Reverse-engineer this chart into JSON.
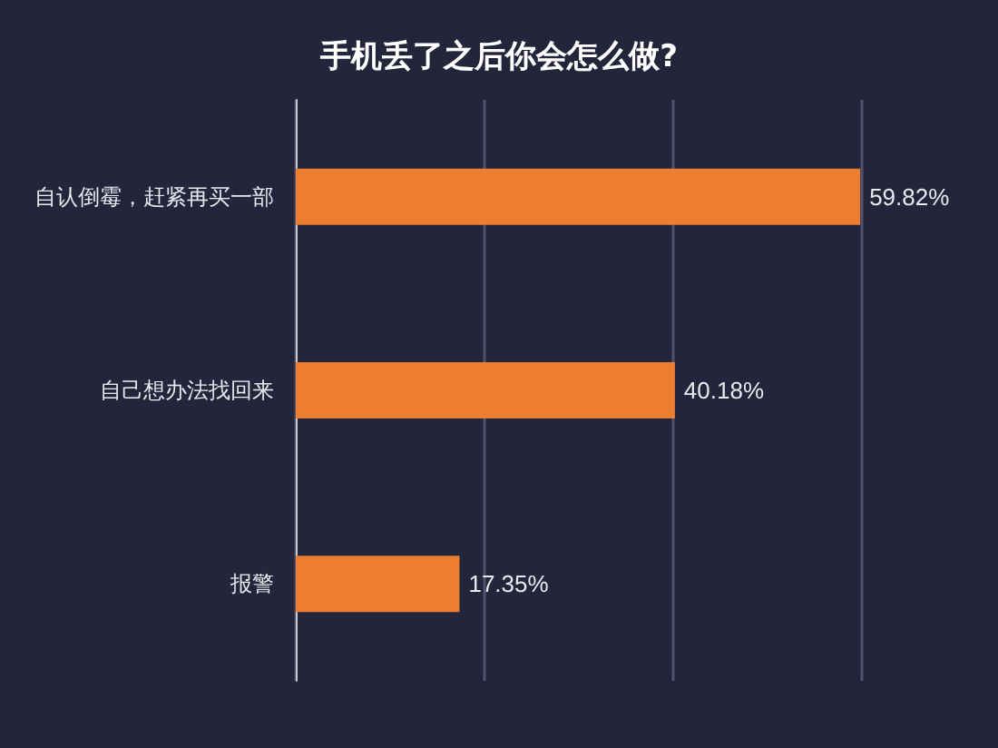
{
  "chart_data": {
    "type": "bar",
    "orientation": "horizontal",
    "title": "手机丢了之后你会怎么做?",
    "categories": [
      "自认倒霉，赶紧再买一部",
      "自己想办法找回来",
      "报警"
    ],
    "values": [
      59.82,
      40.18,
      17.35
    ],
    "value_labels": [
      "59.82%",
      "40.18%",
      "17.35%"
    ],
    "color": "#ed7d31",
    "xlim": [
      0,
      60
    ],
    "xticks": [
      {
        "value": 0,
        "label": null
      },
      {
        "value": 20,
        "label": null
      },
      {
        "value": 40,
        "label": null
      },
      {
        "value": 60,
        "label": null
      }
    ],
    "grid": "x",
    "tick_labels": "y"
  }
}
